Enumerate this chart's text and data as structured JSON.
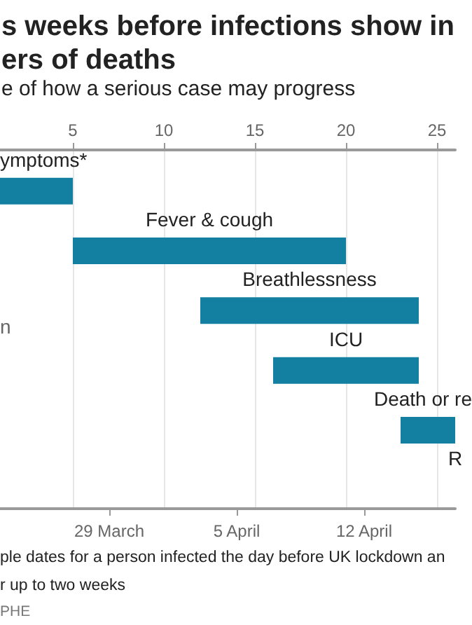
{
  "chart_data": {
    "type": "bar",
    "orientation": "horizontal",
    "title": "s weeks before infections show in ers of deaths",
    "subtitle": "e of how a serious case may progress",
    "categories": [
      "ymptoms*",
      "Fever & cough",
      "Breathlessness",
      "ICU",
      "Death or re",
      "R"
    ],
    "base": [
      1,
      5,
      12,
      16,
      23,
      null
    ],
    "values": [
      4,
      15,
      12,
      8,
      3,
      null
    ],
    "color": "#1380a1",
    "xlim": [
      1,
      26
    ],
    "xticks": [
      5,
      10,
      15,
      20,
      25
    ],
    "x2lim": [
      "--03-23",
      "--04-17"
    ],
    "x2ticks": [
      {
        "value": "--03-29",
        "label": "29 March"
      },
      {
        "value": "--04-05",
        "label": "5 April"
      },
      {
        "value": "--04-12",
        "label": "12 April"
      }
    ],
    "grid": "x",
    "annotations": [
      "n",
      "ple dates for a person infected the day before UK lockdown an",
      "r up to two weeks",
      "PHE"
    ]
  }
}
